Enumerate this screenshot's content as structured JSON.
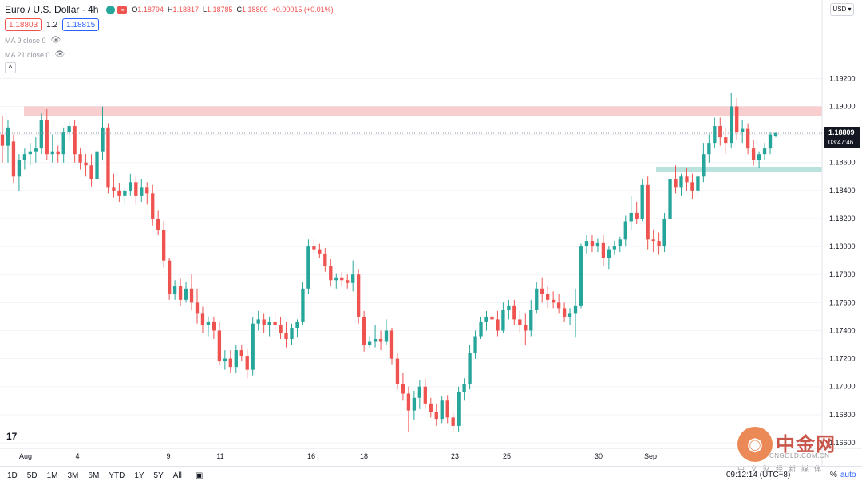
{
  "header": {
    "symbol_title": "Euro / U.S. Dollar · 4h",
    "o_label": "O",
    "o_value": "1.18794",
    "h_label": "H",
    "h_value": "1.18817",
    "l_label": "L",
    "l_value": "1.18785",
    "c_label": "C",
    "c_value": "1.18809",
    "change": "+0.00015 (+0.01%)",
    "sell_price": "1.18803",
    "spread": "1.2",
    "buy_price": "1.18815",
    "ma9_label": "MA 9 close 0",
    "ma21_label": "MA 21 close 0",
    "approx_glyph": "≈"
  },
  "toolbar": {
    "currency": "USD",
    "ranges": [
      "1D",
      "5D",
      "1M",
      "3M",
      "6M",
      "YTD",
      "1Y",
      "5Y",
      "All"
    ],
    "clock": "09:12:14 (UTC+8)",
    "percent": "%",
    "auto": "auto"
  },
  "current_price_label": {
    "price": "1.18809",
    "countdown": "03:47:46"
  },
  "watermark": {
    "brand": "中金网",
    "url": "CNGOLD.COM.CN",
    "tagline": "中文财经新媒体"
  },
  "colors": {
    "up": "#26a69a",
    "down": "#ef5350",
    "resistance_zone": "#f8c9c9",
    "support_zone": "#b2dfdb",
    "axis_text": "#131722",
    "grid": "#f0f3fa"
  },
  "chart_data": {
    "type": "candlestick",
    "title": "Euro / U.S. Dollar · 4h",
    "xlabel": "",
    "ylabel": "",
    "ylim": [
      1.1656,
      1.1976
    ],
    "y_ticks": [
      "1.19200",
      "1.19000",
      "1.18800",
      "1.18600",
      "1.18400",
      "1.18200",
      "1.18000",
      "1.17800",
      "1.17600",
      "1.17400",
      "1.17200",
      "1.17000",
      "1.16800",
      "1.16600"
    ],
    "x_ticks": [
      "Aug",
      "4",
      "9",
      "11",
      "16",
      "18",
      "23",
      "25",
      "30",
      "Sep"
    ],
    "zones": [
      {
        "kind": "resistance",
        "low": 1.1893,
        "high": 1.19
      },
      {
        "kind": "support",
        "low": 1.1853,
        "high": 1.1857
      }
    ],
    "last_price": 1.18809,
    "candles": [
      [
        1.188,
        1.1893,
        1.186,
        1.1872
      ],
      [
        1.1872,
        1.189,
        1.186,
        1.1885
      ],
      [
        1.1875,
        1.188,
        1.1845,
        1.185
      ],
      [
        1.185,
        1.1866,
        1.184,
        1.1862
      ],
      [
        1.1862,
        1.187,
        1.1855,
        1.1866
      ],
      [
        1.1866,
        1.1874,
        1.1858,
        1.1868
      ],
      [
        1.1868,
        1.1878,
        1.186,
        1.187
      ],
      [
        1.187,
        1.1895,
        1.1866,
        1.189
      ],
      [
        1.189,
        1.1898,
        1.1862,
        1.1866
      ],
      [
        1.1866,
        1.188,
        1.186,
        1.1868
      ],
      [
        1.1868,
        1.1872,
        1.186,
        1.1866
      ],
      [
        1.1866,
        1.1885,
        1.186,
        1.1882
      ],
      [
        1.1882,
        1.1889,
        1.1875,
        1.1886
      ],
      [
        1.1886,
        1.189,
        1.186,
        1.1866
      ],
      [
        1.1866,
        1.187,
        1.1855,
        1.186
      ],
      [
        1.186,
        1.1866,
        1.185,
        1.1858
      ],
      [
        1.1858,
        1.1866,
        1.1843,
        1.1848
      ],
      [
        1.1848,
        1.1872,
        1.1845,
        1.1868
      ],
      [
        1.1868,
        1.19,
        1.1862,
        1.1885
      ],
      [
        1.1885,
        1.1888,
        1.1838,
        1.1842
      ],
      [
        1.1842,
        1.1852,
        1.1835,
        1.184
      ],
      [
        1.184,
        1.1845,
        1.1832,
        1.1836
      ],
      [
        1.1836,
        1.1842,
        1.183,
        1.184
      ],
      [
        1.184,
        1.1852,
        1.1836,
        1.1846
      ],
      [
        1.1846,
        1.185,
        1.183,
        1.1836
      ],
      [
        1.1836,
        1.1848,
        1.1832,
        1.1842
      ],
      [
        1.1842,
        1.1846,
        1.183,
        1.1838
      ],
      [
        1.1838,
        1.1844,
        1.1815,
        1.182
      ],
      [
        1.182,
        1.1826,
        1.1808,
        1.1812
      ],
      [
        1.1812,
        1.1818,
        1.1785,
        1.179
      ],
      [
        1.179,
        1.1792,
        1.1762,
        1.1766
      ],
      [
        1.1766,
        1.1776,
        1.1762,
        1.1772
      ],
      [
        1.1772,
        1.1777,
        1.1758,
        1.1762
      ],
      [
        1.1762,
        1.1775,
        1.176,
        1.177
      ],
      [
        1.177,
        1.178,
        1.1755,
        1.176
      ],
      [
        1.176,
        1.177,
        1.1745,
        1.1752
      ],
      [
        1.1752,
        1.1757,
        1.1738,
        1.1744
      ],
      [
        1.1744,
        1.175,
        1.1736,
        1.1746
      ],
      [
        1.1746,
        1.175,
        1.1734,
        1.174
      ],
      [
        1.174,
        1.1746,
        1.1715,
        1.1718
      ],
      [
        1.1718,
        1.1726,
        1.1712,
        1.172
      ],
      [
        1.172,
        1.1726,
        1.171,
        1.1714
      ],
      [
        1.1714,
        1.173,
        1.171,
        1.1726
      ],
      [
        1.1726,
        1.173,
        1.1718,
        1.1722
      ],
      [
        1.1722,
        1.1727,
        1.1706,
        1.1712
      ],
      [
        1.1712,
        1.175,
        1.1708,
        1.1745
      ],
      [
        1.1745,
        1.1754,
        1.174,
        1.1748
      ],
      [
        1.1748,
        1.1752,
        1.1738,
        1.1744
      ],
      [
        1.1744,
        1.175,
        1.1736,
        1.1746
      ],
      [
        1.1746,
        1.1752,
        1.174,
        1.1744
      ],
      [
        1.1744,
        1.175,
        1.1734,
        1.1738
      ],
      [
        1.1738,
        1.1746,
        1.1728,
        1.1734
      ],
      [
        1.1734,
        1.1745,
        1.173,
        1.1742
      ],
      [
        1.1742,
        1.1748,
        1.1735,
        1.1746
      ],
      [
        1.1746,
        1.1775,
        1.1744,
        1.177
      ],
      [
        1.177,
        1.1805,
        1.1766,
        1.18
      ],
      [
        1.18,
        1.1806,
        1.1795,
        1.1798
      ],
      [
        1.1798,
        1.1802,
        1.1792,
        1.1795
      ],
      [
        1.1795,
        1.1799,
        1.1782,
        1.1786
      ],
      [
        1.1786,
        1.1791,
        1.1772,
        1.1776
      ],
      [
        1.1776,
        1.1781,
        1.177,
        1.1778
      ],
      [
        1.1778,
        1.1782,
        1.1772,
        1.1776
      ],
      [
        1.1776,
        1.178,
        1.177,
        1.1774
      ],
      [
        1.1774,
        1.179,
        1.1768,
        1.178
      ],
      [
        1.178,
        1.1784,
        1.1745,
        1.175
      ],
      [
        1.175,
        1.1754,
        1.1725,
        1.173
      ],
      [
        1.173,
        1.1736,
        1.1728,
        1.1732
      ],
      [
        1.1732,
        1.1744,
        1.1728,
        1.1734
      ],
      [
        1.1734,
        1.174,
        1.1726,
        1.1732
      ],
      [
        1.1732,
        1.1748,
        1.173,
        1.174
      ],
      [
        1.174,
        1.1742,
        1.1716,
        1.172
      ],
      [
        1.172,
        1.1724,
        1.1698,
        1.1702
      ],
      [
        1.1702,
        1.171,
        1.169,
        1.1695
      ],
      [
        1.1695,
        1.17,
        1.1668,
        1.1683
      ],
      [
        1.1683,
        1.1697,
        1.1676,
        1.1692
      ],
      [
        1.1692,
        1.1705,
        1.1684,
        1.17
      ],
      [
        1.17,
        1.1706,
        1.1685,
        1.1688
      ],
      [
        1.1688,
        1.1692,
        1.1678,
        1.1682
      ],
      [
        1.1682,
        1.1688,
        1.1672,
        1.1677
      ],
      [
        1.1677,
        1.1693,
        1.1674,
        1.169
      ],
      [
        1.169,
        1.1694,
        1.1674,
        1.1678
      ],
      [
        1.1678,
        1.1682,
        1.1668,
        1.1672
      ],
      [
        1.1672,
        1.17,
        1.1668,
        1.1696
      ],
      [
        1.1696,
        1.1706,
        1.169,
        1.1702
      ],
      [
        1.1702,
        1.173,
        1.1698,
        1.1724
      ],
      [
        1.1724,
        1.174,
        1.172,
        1.1736
      ],
      [
        1.1736,
        1.175,
        1.1734,
        1.1746
      ],
      [
        1.1746,
        1.1754,
        1.174,
        1.175
      ],
      [
        1.175,
        1.1756,
        1.1742,
        1.1748
      ],
      [
        1.1748,
        1.1754,
        1.1736,
        1.174
      ],
      [
        1.174,
        1.176,
        1.1738,
        1.1755
      ],
      [
        1.1755,
        1.1762,
        1.1748,
        1.1758
      ],
      [
        1.1758,
        1.1762,
        1.1744,
        1.1748
      ],
      [
        1.1748,
        1.1754,
        1.1738,
        1.1744
      ],
      [
        1.1744,
        1.1752,
        1.173,
        1.174
      ],
      [
        1.174,
        1.1762,
        1.1736,
        1.1755
      ],
      [
        1.1755,
        1.1775,
        1.1752,
        1.177
      ],
      [
        1.177,
        1.1778,
        1.176,
        1.1766
      ],
      [
        1.1766,
        1.1772,
        1.1756,
        1.1762
      ],
      [
        1.1762,
        1.1768,
        1.1756,
        1.176
      ],
      [
        1.176,
        1.1766,
        1.1752,
        1.1756
      ],
      [
        1.1756,
        1.176,
        1.1746,
        1.175
      ],
      [
        1.175,
        1.1756,
        1.1744,
        1.1752
      ],
      [
        1.1752,
        1.177,
        1.1735,
        1.1758
      ],
      [
        1.1758,
        1.1802,
        1.1756,
        1.18
      ],
      [
        1.18,
        1.1808,
        1.1795,
        1.1804
      ],
      [
        1.1804,
        1.1808,
        1.1796,
        1.18
      ],
      [
        1.18,
        1.1806,
        1.1796,
        1.1803
      ],
      [
        1.1803,
        1.1808,
        1.1786,
        1.1792
      ],
      [
        1.1792,
        1.18,
        1.1784,
        1.1798
      ],
      [
        1.1798,
        1.1804,
        1.1794,
        1.18
      ],
      [
        1.18,
        1.1807,
        1.1796,
        1.1805
      ],
      [
        1.1805,
        1.1822,
        1.18,
        1.1818
      ],
      [
        1.1818,
        1.1836,
        1.1812,
        1.1824
      ],
      [
        1.1824,
        1.1832,
        1.1816,
        1.182
      ],
      [
        1.182,
        1.1848,
        1.1818,
        1.1844
      ],
      [
        1.1844,
        1.185,
        1.1798,
        1.1805
      ],
      [
        1.1805,
        1.1812,
        1.1796,
        1.1804
      ],
      [
        1.1804,
        1.181,
        1.1794,
        1.18
      ],
      [
        1.18,
        1.1824,
        1.1796,
        1.182
      ],
      [
        1.182,
        1.185,
        1.1818,
        1.1848
      ],
      [
        1.1848,
        1.1858,
        1.1838,
        1.1842
      ],
      [
        1.1842,
        1.1852,
        1.1836,
        1.185
      ],
      [
        1.185,
        1.1856,
        1.184,
        1.1846
      ],
      [
        1.1846,
        1.1852,
        1.1834,
        1.184
      ],
      [
        1.184,
        1.1852,
        1.1836,
        1.185
      ],
      [
        1.185,
        1.1874,
        1.1846,
        1.1866
      ],
      [
        1.1866,
        1.188,
        1.186,
        1.1874
      ],
      [
        1.1874,
        1.1892,
        1.187,
        1.1886
      ],
      [
        1.1886,
        1.1892,
        1.1872,
        1.1878
      ],
      [
        1.1878,
        1.1885,
        1.1866,
        1.1874
      ],
      [
        1.1874,
        1.191,
        1.187,
        1.19
      ],
      [
        1.19,
        1.1906,
        1.1876,
        1.1882
      ],
      [
        1.1882,
        1.189,
        1.1874,
        1.1884
      ],
      [
        1.1884,
        1.1888,
        1.1866,
        1.187
      ],
      [
        1.187,
        1.1876,
        1.1858,
        1.1862
      ],
      [
        1.1862,
        1.1868,
        1.1856,
        1.1866
      ],
      [
        1.1866,
        1.1874,
        1.1862,
        1.187
      ],
      [
        1.187,
        1.1882,
        1.1866,
        1.188
      ],
      [
        1.1879,
        1.1882,
        1.1878,
        1.1881
      ]
    ]
  }
}
